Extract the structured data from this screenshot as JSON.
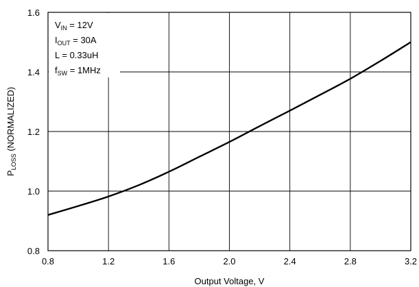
{
  "chart_data": {
    "type": "line",
    "title": "",
    "xlabel": "Output Voltage, V",
    "ylabel": {
      "main": "P",
      "sub": "LOSS",
      "rest": " (NORMALIZED)"
    },
    "xlim": [
      0.8,
      3.2
    ],
    "ylim": [
      0.8,
      1.6
    ],
    "xticks": [
      0.8,
      1.2,
      1.6,
      2.0,
      2.4,
      2.8,
      3.2
    ],
    "xtick_labels": [
      "0.8",
      "1.2",
      "1.6",
      "2.0",
      "2.4",
      "2.8",
      "3.2"
    ],
    "yticks": [
      0.8,
      1.0,
      1.2,
      1.4,
      1.6
    ],
    "ytick_labels": [
      "0.8",
      "1.0",
      "1.2",
      "1.4",
      "1.6"
    ],
    "grid": true,
    "series": [
      {
        "x": [
          0.8,
          1.0,
          1.2,
          1.4,
          1.6,
          1.8,
          2.0,
          2.2,
          2.4,
          2.6,
          2.8,
          3.0,
          3.2
        ],
        "values": [
          0.92,
          0.95,
          0.982,
          1.02,
          1.065,
          1.115,
          1.165,
          1.218,
          1.27,
          1.323,
          1.377,
          1.437,
          1.5
        ]
      }
    ],
    "annotations": [
      {
        "main": "V",
        "sub": "IN",
        "rest": " = 12V"
      },
      {
        "main": "I",
        "sub": "OUT",
        "rest": " = 30A"
      },
      {
        "main": "L = 0.33uH",
        "sub": "",
        "rest": ""
      },
      {
        "main": "f",
        "sub": "SW",
        "rest": " = 1MHz"
      }
    ]
  }
}
